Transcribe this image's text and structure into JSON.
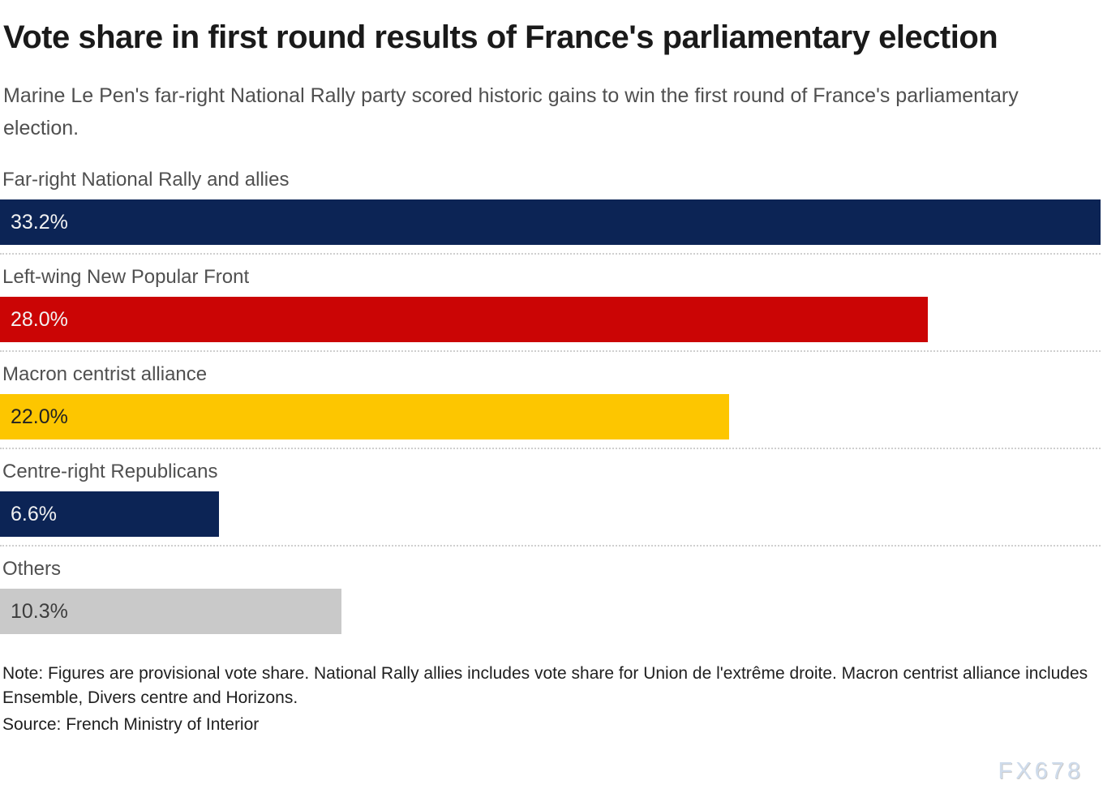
{
  "header": {
    "title": "Vote share in first round results of France's parliamentary election",
    "subtitle": "Marine Le Pen's far-right National Rally party scored historic gains to win the first round of France's parliamentary election."
  },
  "footer": {
    "note": "Note: Figures are provisional vote share. National Rally allies includes vote share for Union de l'extrême droite. Macron centrist alliance includes Ensemble, Divers centre and Horizons.",
    "source": "Source: French Ministry of Interior",
    "watermark": "FX678"
  },
  "colors": {
    "navy": "#0c2455",
    "red": "#cb0505",
    "yellow": "#fdc600",
    "gray": "#c9c9c9",
    "label_gray": "#505050",
    "separator": "#cfcfcf",
    "value_on_dark": "#f2f2f2",
    "value_on_yellow": "#222222",
    "value_on_gray": "#3d3d3d"
  },
  "chart_data": {
    "type": "bar",
    "orientation": "horizontal",
    "title": "Vote share in first round results of France's parliamentary election",
    "categories": [
      "Far-right National Rally and allies",
      "Left-wing New Popular Front",
      "Macron centrist alliance",
      "Centre-right Republicans",
      "Others"
    ],
    "values": [
      33.2,
      28.0,
      22.0,
      6.6,
      10.3
    ],
    "value_labels": [
      "33.2%",
      "28.0%",
      "22.0%",
      "6.6%",
      "10.3%"
    ],
    "bar_colors": [
      "#0c2455",
      "#cb0505",
      "#fdc600",
      "#0c2455",
      "#c9c9c9"
    ],
    "value_text_colors": [
      "#f2f2f2",
      "#f2f2f2",
      "#222222",
      "#f2f2f2",
      "#3d3d3d"
    ],
    "xlim": [
      0,
      33.2
    ],
    "xlabel": "",
    "ylabel": "",
    "grid": false,
    "legend_position": "none",
    "separators": "dotted between rows"
  }
}
